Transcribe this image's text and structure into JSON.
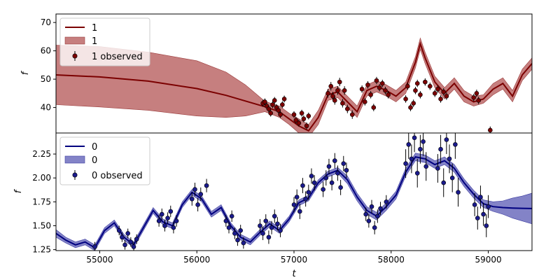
{
  "chart_data": [
    {
      "type": "line",
      "panel": "top",
      "title": "",
      "xlabel": "",
      "ylabel": "f",
      "xlim": [
        54550,
        59450
      ],
      "ylim": [
        31,
        73
      ],
      "yticks": [
        40,
        50,
        60,
        70
      ],
      "grid": false,
      "legend_placement": "top-left",
      "colors": {
        "line": "#7b0000",
        "band": "#b35454",
        "points": "#7b0000"
      },
      "legend": [
        {
          "kind": "line",
          "label": "1"
        },
        {
          "kind": "band",
          "label": "1"
        },
        {
          "kind": "errorbar",
          "label": "1 observed"
        }
      ],
      "series": [
        {
          "name": "1",
          "x": [
            54550,
            55000,
            55500,
            56000,
            56300,
            56500,
            56700,
            56850,
            56950,
            57050,
            57150,
            57250,
            57350,
            57450,
            57550,
            57650,
            57750,
            57850,
            57950,
            58050,
            58150,
            58250,
            58300,
            58350,
            58450,
            58550,
            58650,
            58750,
            58850,
            58950,
            59050,
            59150,
            59250,
            59350,
            59450
          ],
          "y": [
            51.5,
            50.8,
            49.3,
            46.7,
            44.3,
            42.3,
            40.3,
            38.5,
            36.0,
            33.5,
            31.8,
            36.5,
            44.5,
            45.5,
            42.0,
            38.5,
            46.0,
            47.5,
            46.0,
            44.0,
            47.0,
            56.0,
            62.5,
            57.5,
            49.0,
            45.0,
            48.5,
            44.0,
            42.0,
            43.0,
            46.5,
            48.5,
            44.0,
            51.5,
            55.5
          ],
          "band_low": [
            41.0,
            40.2,
            39.0,
            37.0,
            36.5,
            37.0,
            38.5,
            36.5,
            34.0,
            31.0,
            29.5,
            34.0,
            42.5,
            43.5,
            40.0,
            36.5,
            44.0,
            45.5,
            44.0,
            42.0,
            45.0,
            54.0,
            60.5,
            55.5,
            47.0,
            43.0,
            46.5,
            42.0,
            40.5,
            41.5,
            44.5,
            46.5,
            42.0,
            49.5,
            53.5
          ],
          "band_high": [
            62.0,
            61.5,
            59.5,
            56.5,
            52.5,
            48.0,
            42.2,
            40.5,
            38.0,
            36.0,
            34.0,
            39.0,
            46.5,
            47.5,
            44.0,
            40.5,
            48.0,
            49.5,
            48.0,
            46.0,
            49.0,
            58.0,
            64.5,
            59.5,
            51.0,
            47.0,
            50.5,
            46.0,
            44.0,
            44.5,
            48.5,
            50.5,
            46.0,
            53.5,
            57.5
          ]
        }
      ],
      "observed": {
        "name": "1 observed",
        "x": [
          56680,
          56700,
          56720,
          56740,
          56760,
          56780,
          56800,
          56820,
          56840,
          56860,
          56880,
          56900,
          57000,
          57020,
          57050,
          57080,
          57100,
          57130,
          57150,
          57350,
          57380,
          57400,
          57420,
          57450,
          57470,
          57500,
          57520,
          57550,
          57600,
          57700,
          57730,
          57760,
          57790,
          57820,
          57850,
          57880,
          57910,
          57940,
          57970,
          58150,
          58170,
          58200,
          58230,
          58250,
          58270,
          58300,
          58350,
          58400,
          58450,
          58480,
          58510,
          58540,
          58570,
          58850,
          58880,
          58900,
          59020
        ],
        "y": [
          41.5,
          42.0,
          40.5,
          39.5,
          38.0,
          41.0,
          42.5,
          40.0,
          39.0,
          37.5,
          41.0,
          43.0,
          37.5,
          35.5,
          34.5,
          38.0,
          36.0,
          33.5,
          37.0,
          45.0,
          47.5,
          44.0,
          42.5,
          46.0,
          49.0,
          41.5,
          46.0,
          39.5,
          37.5,
          46.5,
          42.0,
          48.0,
          44.5,
          40.0,
          49.5,
          47.0,
          48.5,
          46.0,
          44.5,
          43.0,
          47.5,
          40.0,
          41.5,
          46.0,
          48.5,
          44.5,
          49.0,
          47.5,
          45.0,
          46.5,
          43.0,
          45.5,
          44.0,
          43.5,
          45.0,
          42.5,
          32.0
        ],
        "err": [
          1.2,
          1.2,
          1.2,
          1.2,
          1.2,
          1.2,
          1.2,
          1.2,
          1.2,
          1.2,
          1.2,
          1.2,
          1.2,
          1.2,
          1.2,
          1.2,
          1.2,
          1.2,
          1.2,
          1.5,
          1.5,
          1.5,
          1.5,
          1.5,
          1.5,
          1.5,
          1.5,
          1.5,
          1.5,
          1.3,
          1.3,
          1.3,
          1.3,
          1.3,
          1.3,
          1.3,
          1.3,
          1.3,
          1.3,
          1.3,
          1.3,
          1.3,
          1.3,
          1.3,
          1.3,
          1.3,
          1.3,
          1.3,
          1.3,
          1.3,
          1.3,
          1.3,
          1.3,
          1.3,
          1.3,
          1.3,
          1.3
        ]
      }
    },
    {
      "type": "line",
      "panel": "bottom",
      "title": "",
      "xlabel": "t",
      "ylabel": "f",
      "xlim": [
        54550,
        59450
      ],
      "ylim": [
        1.24,
        2.47
      ],
      "yticks": [
        1.25,
        1.5,
        1.75,
        2.0,
        2.25
      ],
      "ytick_labels": [
        "1.25",
        "1.50",
        "1.75",
        "2.00",
        "2.25"
      ],
      "xticks": [
        55000,
        56000,
        57000,
        58000,
        59000
      ],
      "xtick_labels": [
        "55000",
        "56000",
        "57000",
        "58000",
        "59000"
      ],
      "grid": false,
      "legend_placement": "top-left",
      "colors": {
        "line": "#00007f",
        "band": "#5a5ab4",
        "points": "#1a1a8c"
      },
      "legend": [
        {
          "kind": "line",
          "label": "0"
        },
        {
          "kind": "band",
          "label": "0"
        },
        {
          "kind": "errorbar",
          "label": "0 observed"
        }
      ],
      "series": [
        {
          "name": "0",
          "x": [
            54550,
            54650,
            54750,
            54850,
            54950,
            55050,
            55150,
            55250,
            55350,
            55450,
            55550,
            55650,
            55750,
            55850,
            55950,
            56050,
            56150,
            56250,
            56350,
            56450,
            56550,
            56650,
            56750,
            56850,
            56950,
            57050,
            57150,
            57250,
            57350,
            57450,
            57550,
            57650,
            57750,
            57850,
            57950,
            58050,
            58150,
            58250,
            58350,
            58450,
            58550,
            58650,
            58750,
            58850,
            58950,
            59050,
            59150,
            59250,
            59350,
            59450
          ],
          "y": [
            1.42,
            1.35,
            1.3,
            1.33,
            1.27,
            1.45,
            1.53,
            1.38,
            1.3,
            1.48,
            1.66,
            1.54,
            1.5,
            1.72,
            1.85,
            1.78,
            1.62,
            1.69,
            1.5,
            1.38,
            1.33,
            1.43,
            1.52,
            1.45,
            1.57,
            1.74,
            1.79,
            1.95,
            2.04,
            2.08,
            1.98,
            1.8,
            1.66,
            1.6,
            1.7,
            1.82,
            2.06,
            2.22,
            2.2,
            2.14,
            2.18,
            2.1,
            1.95,
            1.83,
            1.73,
            1.7,
            1.69,
            1.685,
            1.682,
            1.68
          ],
          "band_low": [
            1.38,
            1.32,
            1.27,
            1.3,
            1.24,
            1.42,
            1.5,
            1.35,
            1.27,
            1.45,
            1.63,
            1.51,
            1.47,
            1.69,
            1.82,
            1.75,
            1.59,
            1.66,
            1.47,
            1.35,
            1.3,
            1.4,
            1.49,
            1.42,
            1.54,
            1.71,
            1.76,
            1.92,
            2.01,
            2.05,
            1.94,
            1.76,
            1.62,
            1.56,
            1.66,
            1.78,
            2.02,
            2.18,
            2.16,
            2.1,
            2.14,
            2.06,
            1.91,
            1.79,
            1.69,
            1.65,
            1.62,
            1.58,
            1.55,
            1.52
          ],
          "band_high": [
            1.46,
            1.38,
            1.33,
            1.36,
            1.3,
            1.48,
            1.56,
            1.41,
            1.33,
            1.51,
            1.69,
            1.57,
            1.53,
            1.75,
            1.88,
            1.81,
            1.65,
            1.72,
            1.53,
            1.41,
            1.36,
            1.46,
            1.55,
            1.48,
            1.6,
            1.77,
            1.82,
            1.98,
            2.07,
            2.11,
            2.02,
            1.84,
            1.7,
            1.64,
            1.74,
            1.86,
            2.1,
            2.26,
            2.24,
            2.18,
            2.22,
            2.14,
            1.99,
            1.87,
            1.77,
            1.75,
            1.76,
            1.79,
            1.81,
            1.84
          ]
        }
      ],
      "observed": {
        "name": "0 observed",
        "x": [
          54950,
          55200,
          55230,
          55260,
          55290,
          55320,
          55350,
          55380,
          55610,
          55640,
          55670,
          55700,
          55730,
          55760,
          55790,
          55950,
          55980,
          56010,
          56040,
          56100,
          56300,
          56330,
          56360,
          56390,
          56420,
          56450,
          56480,
          56650,
          56680,
          56710,
          56740,
          56770,
          56800,
          56830,
          56860,
          57000,
          57030,
          57060,
          57090,
          57120,
          57150,
          57180,
          57210,
          57300,
          57330,
          57360,
          57390,
          57420,
          57450,
          57480,
          57510,
          57540,
          57740,
          57770,
          57800,
          57830,
          57860,
          57890,
          57950,
          58150,
          58180,
          58210,
          58240,
          58270,
          58300,
          58330,
          58360,
          58480,
          58510,
          58540,
          58570,
          58600,
          58630,
          58660,
          58690,
          58860,
          58890,
          58920,
          58950,
          58980,
          59000
        ],
        "y": [
          1.28,
          1.45,
          1.38,
          1.3,
          1.42,
          1.33,
          1.28,
          1.36,
          1.55,
          1.62,
          1.5,
          1.58,
          1.65,
          1.48,
          1.55,
          1.78,
          1.88,
          1.72,
          1.83,
          1.92,
          1.55,
          1.48,
          1.6,
          1.42,
          1.35,
          1.45,
          1.32,
          1.5,
          1.42,
          1.55,
          1.38,
          1.48,
          1.6,
          1.52,
          1.45,
          1.72,
          1.8,
          1.65,
          1.92,
          1.78,
          1.85,
          2.02,
          1.95,
          1.88,
          2.0,
          2.12,
          1.95,
          2.18,
          2.05,
          1.9,
          2.15,
          2.08,
          1.62,
          1.55,
          1.7,
          1.48,
          1.6,
          1.68,
          1.75,
          2.15,
          2.35,
          2.2,
          2.42,
          2.05,
          2.3,
          2.38,
          2.12,
          2.1,
          2.3,
          1.95,
          2.4,
          2.2,
          2.0,
          2.35,
          1.85,
          1.72,
          1.58,
          1.8,
          1.62,
          1.5,
          1.7
        ],
        "err": [
          0.05,
          0.05,
          0.05,
          0.05,
          0.05,
          0.05,
          0.05,
          0.05,
          0.06,
          0.06,
          0.06,
          0.06,
          0.06,
          0.06,
          0.06,
          0.07,
          0.07,
          0.07,
          0.07,
          0.07,
          0.06,
          0.06,
          0.06,
          0.06,
          0.06,
          0.06,
          0.06,
          0.07,
          0.07,
          0.07,
          0.07,
          0.07,
          0.07,
          0.07,
          0.07,
          0.08,
          0.08,
          0.08,
          0.08,
          0.08,
          0.08,
          0.08,
          0.08,
          0.08,
          0.08,
          0.08,
          0.08,
          0.08,
          0.08,
          0.08,
          0.08,
          0.08,
          0.07,
          0.07,
          0.07,
          0.07,
          0.07,
          0.07,
          0.07,
          0.15,
          0.15,
          0.15,
          0.15,
          0.15,
          0.15,
          0.15,
          0.15,
          0.15,
          0.15,
          0.15,
          0.15,
          0.15,
          0.15,
          0.15,
          0.15,
          0.12,
          0.12,
          0.12,
          0.12,
          0.12,
          0.12
        ]
      }
    }
  ]
}
